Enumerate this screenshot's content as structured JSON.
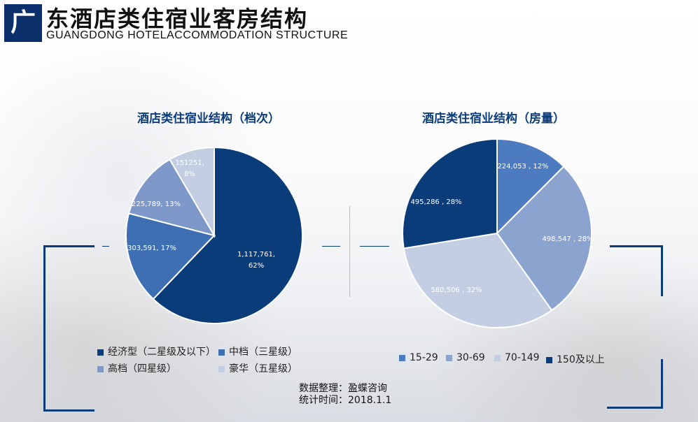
{
  "header": {
    "badge": "广",
    "title": "东酒店类住宿业客房结构",
    "subtitle": "GUANGDONG HOTELACCOMMODATION STRUCTURE"
  },
  "colors": {
    "brand": "#0b2f6b",
    "accent": "#0b3c7a"
  },
  "chart_data": [
    {
      "type": "pie",
      "title": "酒店类住宿业结构（档次）",
      "legend_position": "bottom",
      "slices": [
        {
          "legend": "经济型（二星级及以下）",
          "value": 1117761,
          "label_line1": "1,117,761,",
          "label_line2": "62%",
          "color": "#0b3c7a"
        },
        {
          "legend": "中档（三星级）",
          "value": 303591,
          "label_line1": "303,591, 17%",
          "label_line2": "",
          "color": "#3f6fb3"
        },
        {
          "legend": "高档（四星级）",
          "value": 225789,
          "label_line1": "225,789, 13%",
          "label_line2": "",
          "color": "#7d98c9"
        },
        {
          "legend": "豪华（五星级）",
          "value": 151251,
          "label_line1": "151251,",
          "label_line2": "8%",
          "color": "#c3cee3"
        }
      ]
    },
    {
      "type": "pie",
      "title": "酒店类住宿业结构（房量）",
      "legend_position": "bottom",
      "slices": [
        {
          "legend": "15-29",
          "value": 224053,
          "label_line1": "224,053 , 12%",
          "label_line2": "",
          "color": "#4d7bc0"
        },
        {
          "legend": "30-69",
          "value": 498547,
          "label_line1": "498,547 , 28%",
          "label_line2": "",
          "color": "#8aa3cf"
        },
        {
          "legend": "70-149",
          "value": 580506,
          "label_line1": "580,506 , 32%",
          "label_line2": "",
          "color": "#c3cee3"
        },
        {
          "legend": "150及以上",
          "value": 495286,
          "label_line1": "495,286 , 28%",
          "label_line2": "",
          "color": "#0b3c7a"
        }
      ]
    }
  ],
  "note": {
    "source": "数据整理：盈蝶咨询",
    "date": "统计时间：2018.1.1"
  }
}
